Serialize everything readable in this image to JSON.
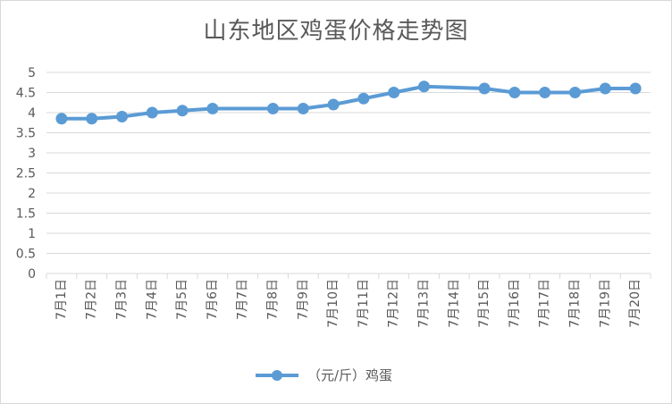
{
  "chart_data": {
    "type": "line",
    "title": "山东地区鸡蛋价格走势图",
    "categories": [
      "7月1日",
      "7月2日",
      "7月3日",
      "7月4日",
      "7月5日",
      "7月6日",
      "7月7日",
      "7月8日",
      "7月9日",
      "7月10日",
      "7月11日",
      "7月12日",
      "7月13日",
      "7月14日",
      "7月15日",
      "7月16日",
      "7月17日",
      "7月18日",
      "7月19日",
      "7月20日"
    ],
    "series": [
      {
        "name": "（元/斤）鸡蛋",
        "color": "#5b9bd5",
        "values": [
          3.85,
          3.85,
          3.9,
          4.0,
          4.05,
          4.1,
          null,
          4.1,
          4.1,
          4.2,
          4.35,
          4.5,
          4.65,
          null,
          4.6,
          4.5,
          4.5,
          4.5,
          4.6,
          4.6
        ]
      }
    ],
    "yticks": [
      "0",
      "0.5",
      "1",
      "1.5",
      "2",
      "2.5",
      "3",
      "3.5",
      "4",
      "4.5",
      "5"
    ],
    "ylim": [
      0,
      5
    ],
    "grid": true,
    "legend_position": "bottom"
  }
}
